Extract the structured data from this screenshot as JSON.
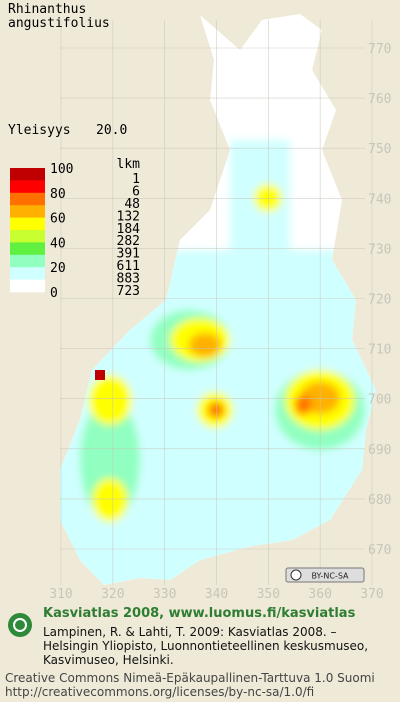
{
  "title": [
    "Rhinanthus",
    "angustifolius"
  ],
  "frequency": {
    "label": "Yleisyys",
    "value": "20.0"
  },
  "legend": {
    "scale": [
      100,
      80,
      60,
      40,
      20,
      0
    ],
    "count_header": "lkm",
    "classes": [
      {
        "color": "#c00000",
        "count": 1
      },
      {
        "color": "#ff0000",
        "count": 6
      },
      {
        "color": "#ff7000",
        "count": 48
      },
      {
        "color": "#ffb000",
        "count": 132
      },
      {
        "color": "#ffff00",
        "count": 184
      },
      {
        "color": "#c8ff30",
        "count": 282
      },
      {
        "color": "#60f040",
        "count": 391
      },
      {
        "color": "#90ffc0",
        "count": 611
      },
      {
        "color": "#d0ffff",
        "count": 883
      },
      {
        "color": "#ffffff",
        "count": 723
      }
    ]
  },
  "grid": {
    "north": [
      770,
      760,
      750,
      740,
      730,
      720,
      710,
      700,
      690,
      680,
      670
    ],
    "east": [
      310,
      320,
      330,
      340,
      350,
      360,
      370
    ]
  },
  "badge": "BY-NC-SA",
  "footer": {
    "heading": "Kasviatlas 2008, www.luomus.fi/kasviatlas",
    "citation": [
      "Lampinen, R. & Lahti, T. 2009: Kasviatlas 2008. –",
      "Helsingin Yliopisto, Luonnontieteellinen keskusmuseo,",
      "Kasvimuseo, Helsinki."
    ],
    "license": [
      "Creative Commons Nimeä-Epäkaupallinen-Tarttuva 1.0 Suomi",
      "http://creativecommons.org/licenses/by-nc-sa/1.0/fi"
    ]
  }
}
